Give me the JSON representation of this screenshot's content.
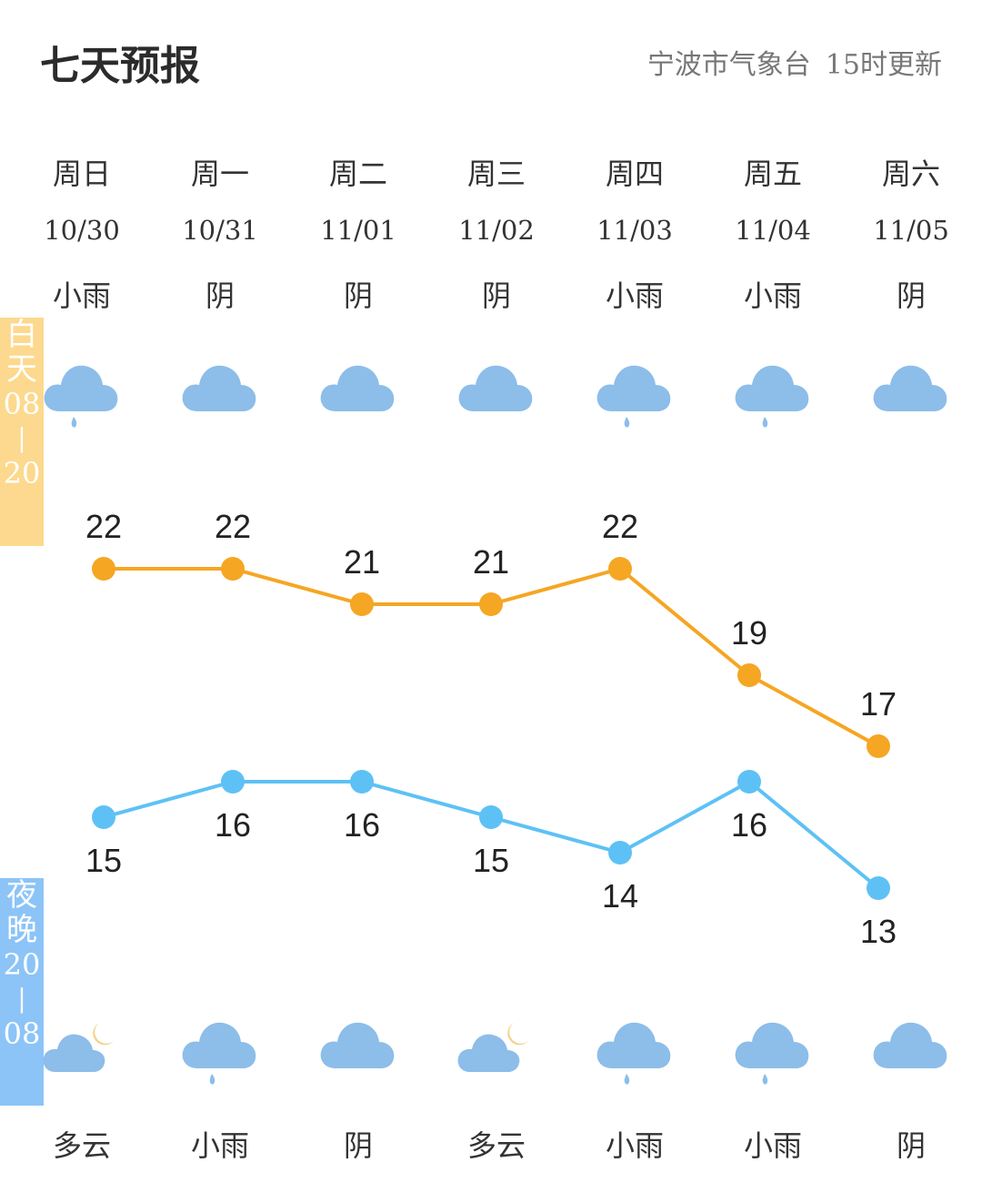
{
  "header": {
    "title": "七天预报",
    "source": "宁波市气象台",
    "update": "15时更新"
  },
  "bands": {
    "day": [
      "白",
      "天",
      "08",
      "|",
      "20"
    ],
    "night": [
      "夜",
      "晚",
      "20",
      "|",
      "08"
    ]
  },
  "days": [
    {
      "weekday": "周日",
      "date": "10/30",
      "day_weather": "小雨",
      "night_weather": "多云",
      "day_icon": "cloud-rain-icon",
      "night_icon": "cloud-moon-icon"
    },
    {
      "weekday": "周一",
      "date": "10/31",
      "day_weather": "阴",
      "night_weather": "小雨",
      "day_icon": "cloud-icon",
      "night_icon": "cloud-rain-icon"
    },
    {
      "weekday": "周二",
      "date": "11/01",
      "day_weather": "阴",
      "night_weather": "阴",
      "day_icon": "cloud-icon",
      "night_icon": "cloud-icon"
    },
    {
      "weekday": "周三",
      "date": "11/02",
      "day_weather": "阴",
      "night_weather": "多云",
      "day_icon": "cloud-icon",
      "night_icon": "cloud-moon-icon"
    },
    {
      "weekday": "周四",
      "date": "11/03",
      "day_weather": "小雨",
      "night_weather": "小雨",
      "day_icon": "cloud-rain-icon",
      "night_icon": "cloud-rain-icon"
    },
    {
      "weekday": "周五",
      "date": "11/04",
      "day_weather": "小雨",
      "night_weather": "小雨",
      "day_icon": "cloud-rain-icon",
      "night_icon": "cloud-rain-icon"
    },
    {
      "weekday": "周六",
      "date": "11/05",
      "day_weather": "阴",
      "night_weather": "阴",
      "day_icon": "cloud-icon",
      "night_icon": "cloud-icon"
    }
  ],
  "colors": {
    "high": "#f5a623",
    "low": "#5ec1f5",
    "cloud": "#8dbde9",
    "moon": "#f3d38a"
  },
  "chart_data": {
    "type": "line",
    "categories": [
      "10/30",
      "10/31",
      "11/01",
      "11/02",
      "11/03",
      "11/04",
      "11/05"
    ],
    "series": [
      {
        "values": [
          22,
          22,
          21,
          21,
          22,
          19,
          17
        ]
      },
      {
        "values": [
          15,
          16,
          16,
          15,
          14,
          16,
          13
        ]
      }
    ],
    "ylim": [
      13,
      22
    ],
    "grid": false
  }
}
